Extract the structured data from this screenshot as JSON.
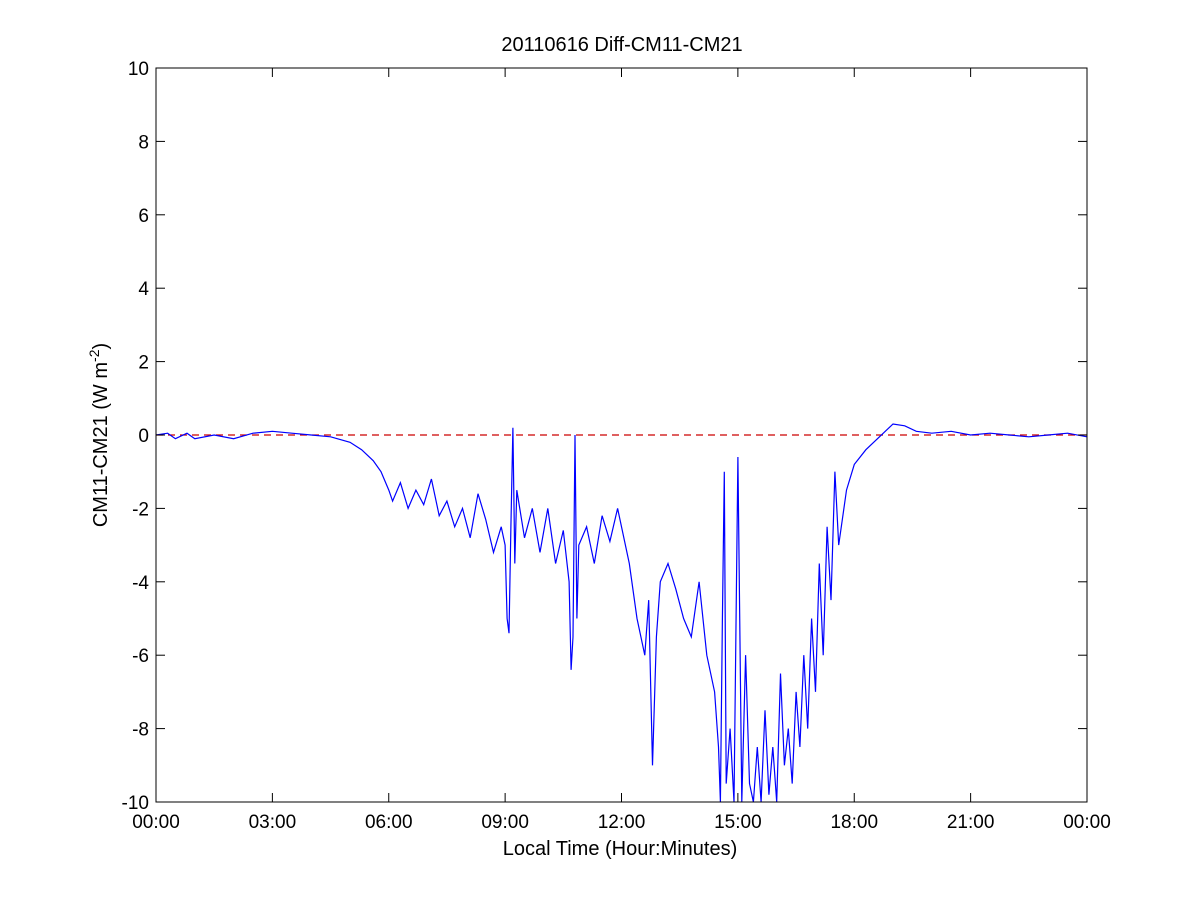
{
  "chart_data": {
    "type": "line",
    "title": "20110616 Diff-CM11-CM21",
    "xlabel": "Local Time (Hour:Minutes)",
    "ylabel": "CM11-CM21 (W m",
    "ylabel_superscript": "-2",
    "ylabel_close": ")",
    "xlim": [
      0,
      24
    ],
    "ylim": [
      -10,
      10
    ],
    "x_unit": "hours",
    "x_ticks": [
      0,
      3,
      6,
      9,
      12,
      15,
      18,
      21,
      24
    ],
    "x_tick_labels": [
      "00:00",
      "03:00",
      "06:00",
      "09:00",
      "12:00",
      "15:00",
      "18:00",
      "21:00",
      "00:00"
    ],
    "y_ticks": [
      -10,
      -8,
      -6,
      -4,
      -2,
      0,
      2,
      4,
      6,
      8,
      10
    ],
    "y_tick_labels": [
      "-10",
      "-8",
      "-6",
      "-4",
      "-2",
      "0",
      "2",
      "4",
      "6",
      "8",
      "10"
    ],
    "grid": false,
    "reference_line": {
      "y": 0,
      "style": "dashed",
      "color": "#cc0000"
    },
    "series": [
      {
        "color": "#0000ff",
        "x": [
          0,
          0.3,
          0.5,
          0.8,
          1.0,
          1.5,
          2.0,
          2.5,
          3.0,
          3.5,
          4.0,
          4.5,
          5.0,
          5.3,
          5.6,
          5.8,
          6.0,
          6.1,
          6.3,
          6.5,
          6.7,
          6.9,
          7.1,
          7.3,
          7.5,
          7.7,
          7.9,
          8.1,
          8.3,
          8.5,
          8.7,
          8.9,
          9.0,
          9.05,
          9.1,
          9.15,
          9.2,
          9.25,
          9.3,
          9.5,
          9.7,
          9.9,
          10.1,
          10.3,
          10.5,
          10.65,
          10.7,
          10.75,
          10.8,
          10.85,
          10.9,
          11.1,
          11.3,
          11.5,
          11.7,
          11.9,
          12.0,
          12.2,
          12.4,
          12.6,
          12.7,
          12.8,
          12.9,
          13.0,
          13.2,
          13.4,
          13.6,
          13.8,
          14.0,
          14.2,
          14.4,
          14.5,
          14.55,
          14.6,
          14.65,
          14.7,
          14.8,
          14.9,
          15.0,
          15.1,
          15.2,
          15.3,
          15.4,
          15.5,
          15.6,
          15.7,
          15.8,
          15.9,
          16.0,
          16.1,
          16.2,
          16.3,
          16.4,
          16.5,
          16.6,
          16.7,
          16.8,
          16.9,
          17.0,
          17.1,
          17.2,
          17.3,
          17.4,
          17.5,
          17.6,
          17.8,
          18.0,
          18.3,
          18.6,
          19.0,
          19.3,
          19.6,
          20.0,
          20.5,
          21.0,
          21.5,
          22.0,
          22.5,
          23.0,
          23.5,
          24.0
        ],
        "y": [
          0,
          0.05,
          -0.1,
          0.05,
          -0.1,
          0,
          -0.1,
          0.05,
          0.1,
          0.05,
          0,
          -0.05,
          -0.2,
          -0.4,
          -0.7,
          -1.0,
          -1.5,
          -1.8,
          -1.3,
          -2.0,
          -1.5,
          -1.9,
          -1.2,
          -2.2,
          -1.8,
          -2.5,
          -2.0,
          -2.8,
          -1.6,
          -2.3,
          -3.2,
          -2.5,
          -3.0,
          -5.0,
          -5.4,
          -2.5,
          0.2,
          -3.5,
          -1.5,
          -2.8,
          -2.0,
          -3.2,
          -2.0,
          -3.5,
          -2.6,
          -4.0,
          -6.4,
          -5.5,
          0,
          -5.0,
          -3.0,
          -2.5,
          -3.5,
          -2.2,
          -2.9,
          -2.0,
          -2.5,
          -3.5,
          -5.0,
          -6.0,
          -4.5,
          -9.0,
          -5.5,
          -4.0,
          -3.5,
          -4.2,
          -5.0,
          -5.5,
          -4.0,
          -6.0,
          -7.0,
          -8.5,
          -10,
          -5.0,
          -1.0,
          -9.5,
          -8.0,
          -10,
          -0.6,
          -10,
          -6.0,
          -9.5,
          -10,
          -8.5,
          -10,
          -7.5,
          -9.8,
          -8.5,
          -10,
          -6.5,
          -9.0,
          -8.0,
          -9.5,
          -7.0,
          -8.5,
          -6.0,
          -8.0,
          -5.0,
          -7.0,
          -3.5,
          -6.0,
          -2.5,
          -4.5,
          -1.0,
          -3.0,
          -1.5,
          -0.8,
          -0.4,
          -0.1,
          0.3,
          0.25,
          0.1,
          0.05,
          0.1,
          0.0,
          0.05,
          0.0,
          -0.05,
          0.0,
          0.05,
          -0.05
        ]
      }
    ]
  }
}
